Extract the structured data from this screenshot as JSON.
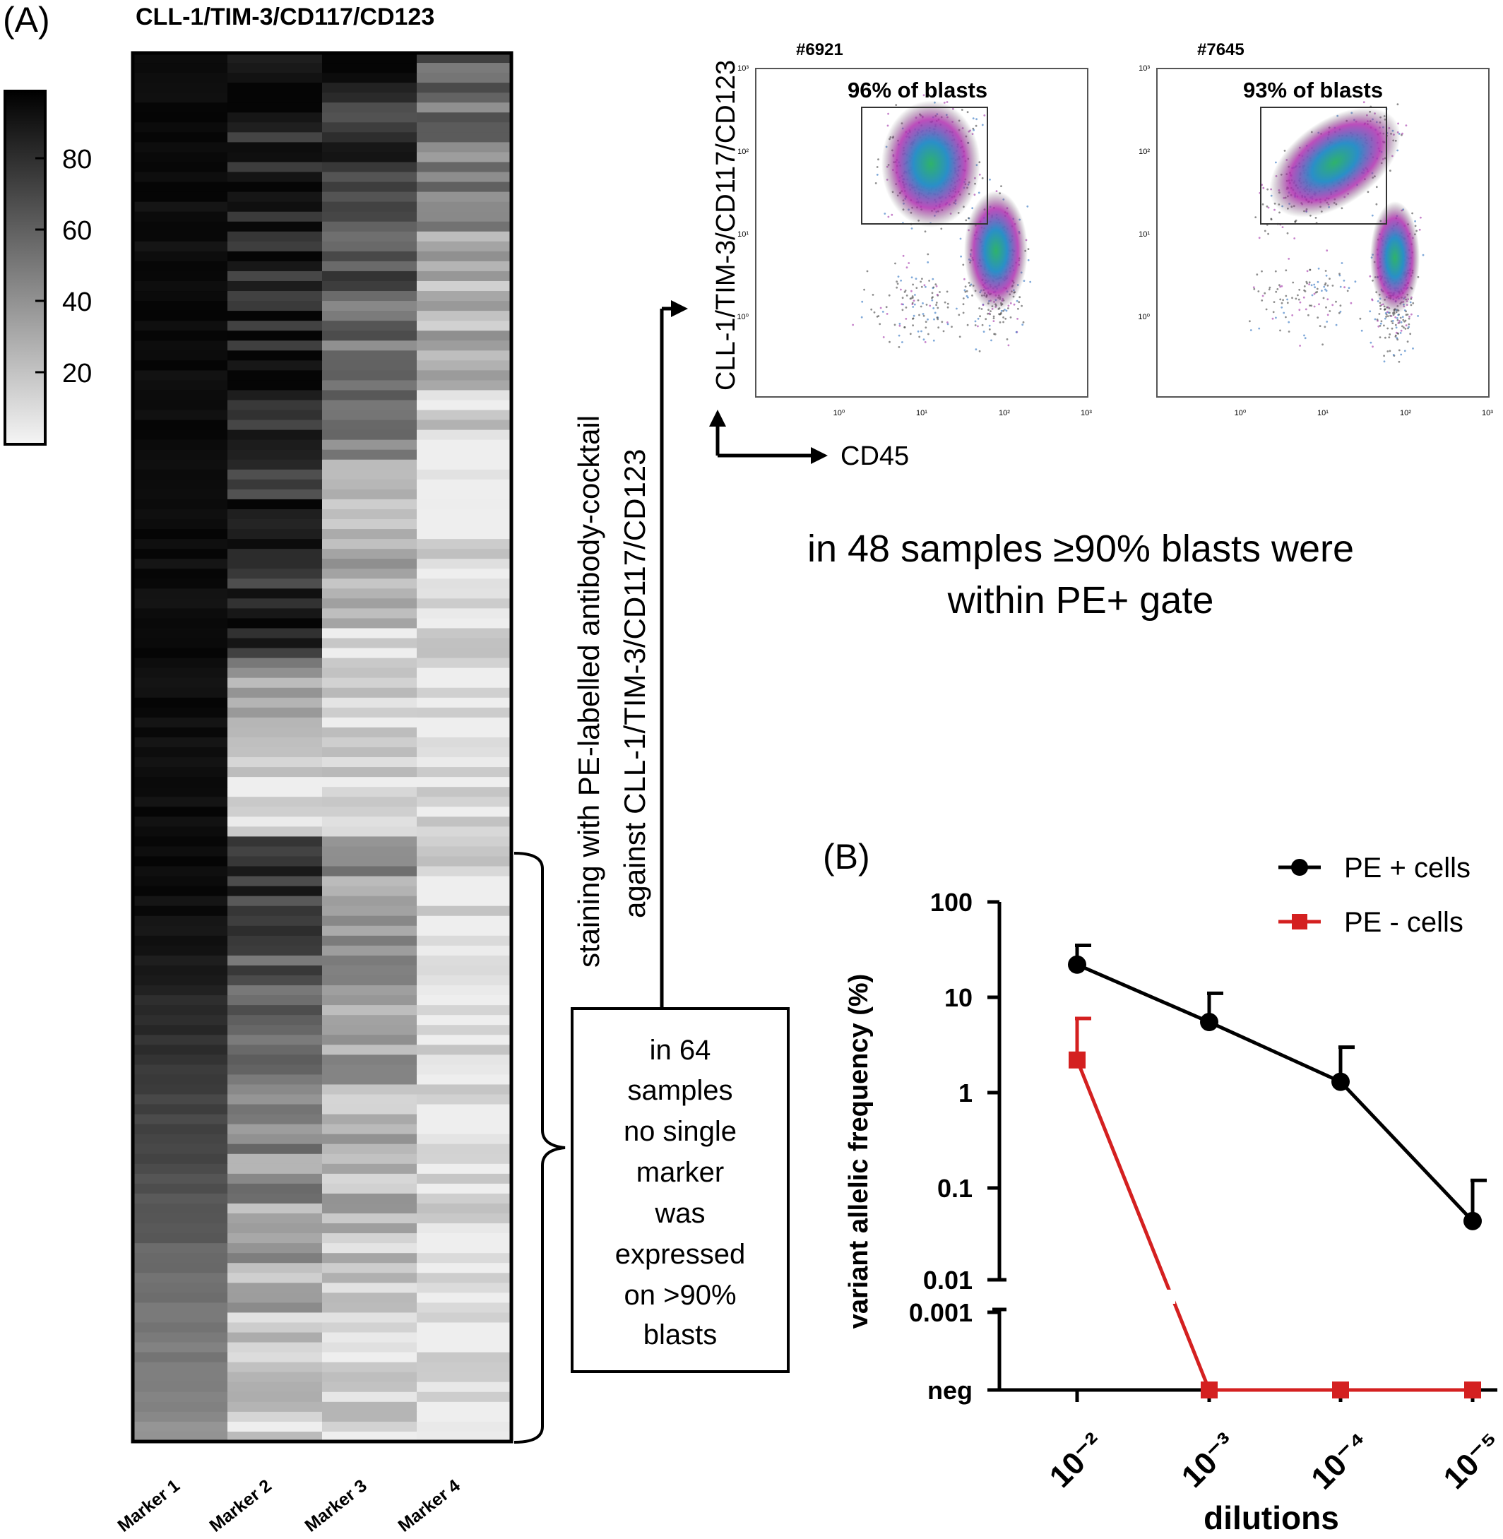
{
  "panel_a": {
    "label": "(A)",
    "heatmap_title": "CLL-1/TIM-3/CD117/CD123",
    "colorbar_ticks": [
      "80",
      "60",
      "40",
      "20"
    ],
    "markers": [
      "Marker 1",
      "Marker 2",
      "Marker 3",
      "Marker 4"
    ],
    "bracket_text": [
      "in 64",
      "samples",
      "no single",
      "marker",
      "was",
      "expressed",
      "on >90%",
      "blasts"
    ],
    "staining_text": [
      "staining with PE-labelled antibody-cocktail",
      "against CLL-1/TIM-3/CD117/CD123"
    ],
    "flow_y_axis": "CLL-1/TIM-3/CD117/CD123",
    "flow_x_axis": "CD45",
    "flow_plots": [
      {
        "id": "#6921",
        "gate_label": "96% of blasts",
        "yticks": [
          "10³",
          "10²",
          "10¹",
          "10⁰"
        ],
        "xticks": [
          "10⁰",
          "10¹",
          "10²",
          "10³"
        ]
      },
      {
        "id": "#7645",
        "gate_label": "93% of blasts",
        "yticks": [
          "10³",
          "10²",
          "10¹",
          "10⁰"
        ],
        "xticks": [
          "10⁰",
          "10¹",
          "10²",
          "10³"
        ]
      }
    ],
    "summary_text": [
      "in 48 samples ≥90% blasts were",
      "within PE+ gate"
    ]
  },
  "panel_b": {
    "label": "(B)"
  },
  "chart_data": {
    "type": "line",
    "xlabel": "dilutions",
    "ylabel": "variant allelic frequency (%)",
    "categories": [
      "10⁻²",
      "10⁻³",
      "10⁻⁴",
      "10⁻⁵"
    ],
    "y_scale": "log, broken axis between 0.01 and 0.001, bottom category 'neg'",
    "yticks": [
      "100",
      "10",
      "1",
      "0.1",
      "0.01",
      "0.001",
      "neg"
    ],
    "legend_position": "top-right",
    "series": [
      {
        "name": "PE + cells",
        "color": "#000000",
        "marker": "circle",
        "values": [
          22,
          5.5,
          1.3,
          0.045
        ],
        "error_upper": [
          35,
          11,
          3,
          0.12
        ]
      },
      {
        "name": "PE - cells",
        "color": "#d42020",
        "marker": "square",
        "values": [
          2.2,
          "neg",
          "neg",
          "neg"
        ],
        "error_upper": [
          6,
          null,
          null,
          null
        ]
      }
    ]
  }
}
